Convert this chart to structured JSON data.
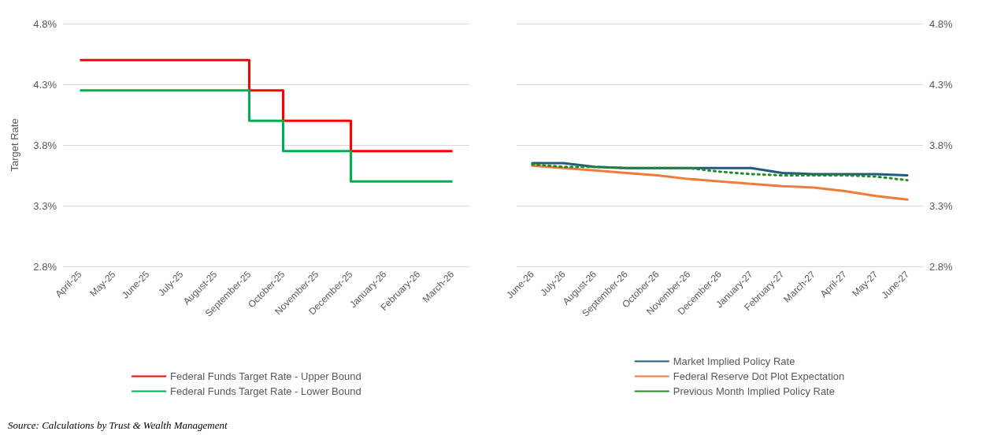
{
  "chart_data": [
    {
      "type": "step",
      "ylabel": "Target Rate",
      "annotations": [
        "Source: Calculations by Trust & Wealth Management"
      ],
      "categories": [
        "April-25",
        "May-25",
        "June-25",
        "July-25",
        "August-25",
        "September-25",
        "October-25",
        "November-25",
        "December-25",
        "January-26",
        "February-26",
        "March-26"
      ],
      "series": [
        {
          "name": "Federal Funds Target Rate - Upper Bound",
          "color": "#ff0000",
          "values": [
            4.5,
            4.5,
            4.5,
            4.5,
            4.5,
            4.25,
            4.0,
            4.0,
            3.75,
            3.75,
            3.75,
            3.75
          ]
        },
        {
          "name": "Federal Funds Target Rate - Lower Bound",
          "color": "#00b050",
          "values": [
            4.25,
            4.25,
            4.25,
            4.25,
            4.25,
            4.0,
            3.75,
            3.75,
            3.5,
            3.5,
            3.5,
            3.5
          ]
        }
      ],
      "ylim": [
        2.8,
        4.8
      ],
      "yticks": [
        {
          "value": 2.8,
          "label": "2.8%"
        },
        {
          "value": 3.3,
          "label": "3.3%"
        },
        {
          "value": 3.8,
          "label": "3.8%"
        },
        {
          "value": 4.3,
          "label": "4.3%"
        },
        {
          "value": 4.8,
          "label": "4.8%"
        }
      ],
      "grid": "y",
      "legend": "bottom",
      "marker": "none",
      "line_style": "solid"
    },
    {
      "type": "line",
      "categories": [
        "June-26",
        "July-26",
        "August-26",
        "September-26",
        "October-26",
        "November-26",
        "December-26",
        "January-27",
        "February-27",
        "March-27",
        "April-27",
        "May-27",
        "June-27"
      ],
      "series": [
        {
          "name": "Market Implied Policy Rate",
          "color": "#1f5c7e",
          "axis": "y2",
          "line_style": "solid",
          "values": [
            3.65,
            3.65,
            3.62,
            3.61,
            3.61,
            3.61,
            3.61,
            3.61,
            3.57,
            3.56,
            3.56,
            3.56,
            3.55
          ]
        },
        {
          "name": "Federal Reserve Dot Plot Expectation",
          "color": "#f07c3a",
          "axis": "y2",
          "line_style": "solid",
          "values": [
            3.63,
            3.61,
            3.59,
            3.57,
            3.55,
            3.52,
            3.5,
            3.48,
            3.46,
            3.45,
            3.42,
            3.38,
            3.35
          ]
        },
        {
          "name": "Previous Month Implied Policy Rate",
          "color": "#228b22",
          "axis": "y2",
          "line_style": "dotted",
          "values": [
            3.64,
            3.62,
            3.62,
            3.61,
            3.61,
            3.61,
            3.58,
            3.56,
            3.55,
            3.55,
            3.55,
            3.54,
            3.51
          ]
        }
      ],
      "y2lim": [
        2.8,
        4.8
      ],
      "y2ticks": [
        {
          "value": 2.8,
          "label": "2.8%"
        },
        {
          "value": 3.3,
          "label": "3.3%"
        },
        {
          "value": 3.8,
          "label": "3.8%"
        },
        {
          "value": 4.3,
          "label": "4.3%"
        },
        {
          "value": 4.8,
          "label": "4.8%"
        }
      ],
      "grid": "y",
      "legend": "bottom",
      "marker": "none"
    }
  ]
}
